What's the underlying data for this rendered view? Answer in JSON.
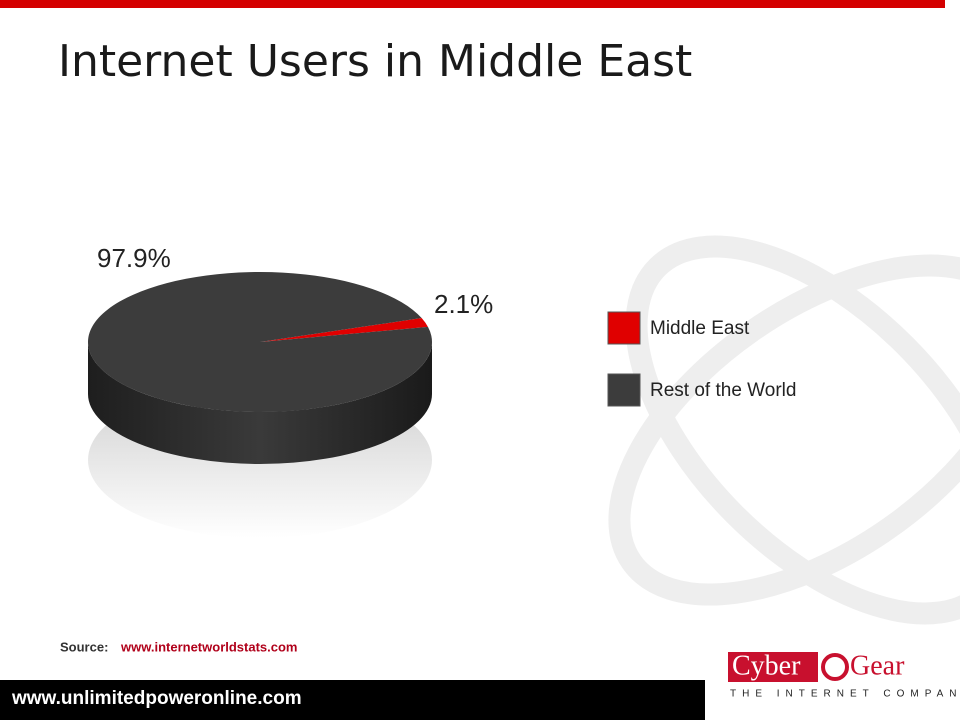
{
  "chart_data": {
    "type": "pie",
    "title": "Internet Users in Middle East",
    "categories": [
      "Middle East",
      "Rest of the World"
    ],
    "values": [
      2.1,
      97.9
    ],
    "value_labels": [
      "2.1%",
      "97.9%"
    ],
    "colors": [
      "#e00000",
      "#3c3c3c"
    ],
    "legend": "right"
  },
  "source": {
    "label": "Source:",
    "link": "www.internetworldstats.com"
  },
  "footer": "www.unlimitedpoweronline.com",
  "logo": {
    "left": "Cyber",
    "right": "Gear",
    "tagline": "THE INTERNET COMPANY"
  }
}
